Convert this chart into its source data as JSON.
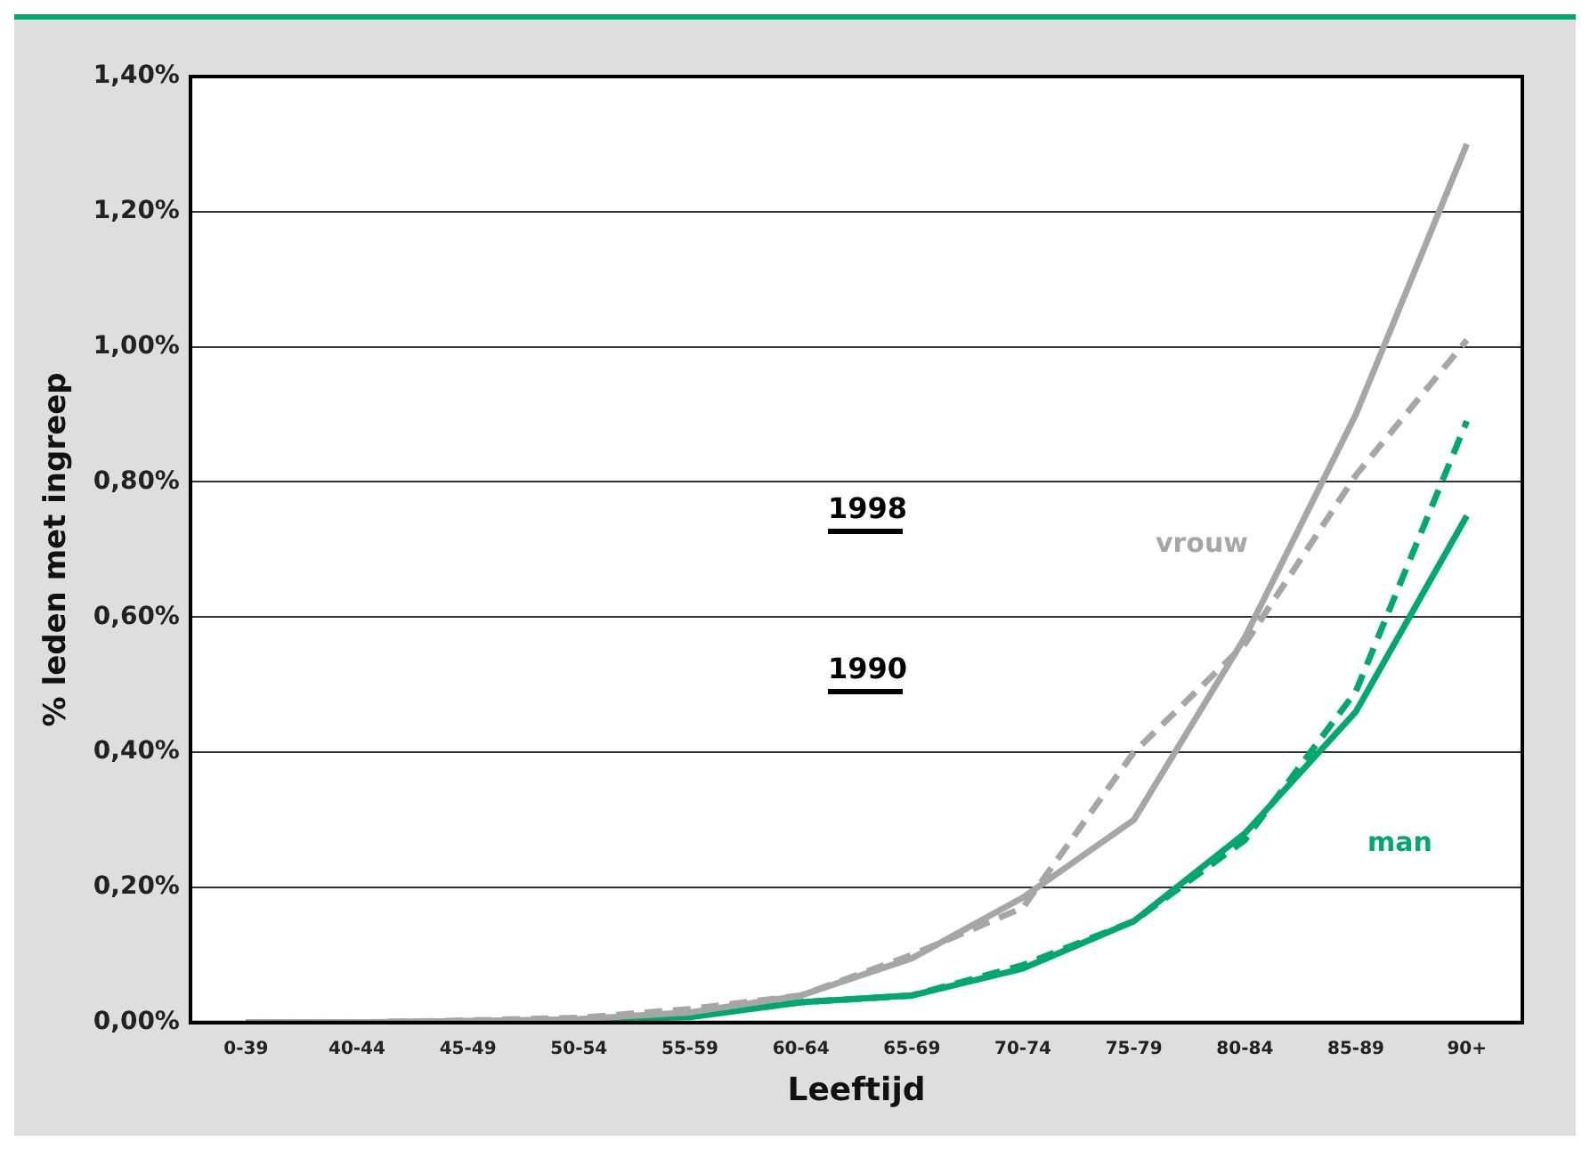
{
  "chart_data": {
    "type": "line",
    "xlabel": "Leeftijd",
    "ylabel": "% leden met ingreep",
    "categories": [
      "0-39",
      "40-44",
      "45-49",
      "50-54",
      "55-59",
      "60-64",
      "65-69",
      "70-74",
      "75-79",
      "80-84",
      "85-89",
      "90+"
    ],
    "series": [
      {
        "color": "#a6a6a6",
        "line_style": "solid",
        "values": [
          0,
          0,
          0.002,
          0.005,
          0.015,
          0.04,
          0.095,
          0.185,
          0.3,
          0.57,
          0.9,
          1.3
        ]
      },
      {
        "color": "#a6a6a6",
        "line_style": "dashed",
        "values": [
          0,
          0,
          0.003,
          0.007,
          0.02,
          0.04,
          0.1,
          0.17,
          0.4,
          0.56,
          0.81,
          1.01
        ]
      },
      {
        "color": "#00a86b",
        "line_style": "solid",
        "values": [
          0,
          0,
          0.002,
          0.003,
          0.008,
          0.03,
          0.04,
          0.08,
          0.15,
          0.28,
          0.46,
          0.75
        ]
      },
      {
        "color": "#00a86b",
        "line_style": "dashed",
        "values": [
          0,
          0,
          0.002,
          0.003,
          0.01,
          0.03,
          0.04,
          0.085,
          0.15,
          0.27,
          0.49,
          0.89
        ]
      }
    ],
    "ylim": [
      0,
      1.4
    ],
    "yticks": [
      {
        "value": 0,
        "label": "0,00%"
      },
      {
        "value": 0.2,
        "label": "0,20%"
      },
      {
        "value": 0.4,
        "label": "0,40%"
      },
      {
        "value": 0.6,
        "label": "0,60%"
      },
      {
        "value": 0.8,
        "label": "0,80%"
      },
      {
        "value": 1,
        "label": "1,00%"
      },
      {
        "value": 1.2,
        "label": "1,20%"
      },
      {
        "value": 1.4,
        "label": "1,40%"
      }
    ],
    "grid": "y",
    "marker": "none",
    "legend": false,
    "annotations": [
      "vrouw",
      "man",
      "1998",
      "1990"
    ]
  }
}
